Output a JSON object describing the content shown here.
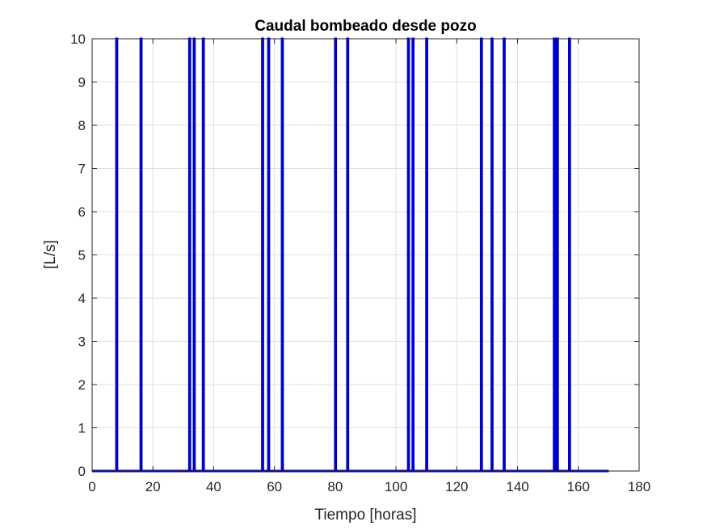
{
  "chart_data": {
    "type": "line",
    "title": "Caudal bombeado desde pozo",
    "xlabel": "Tiempo [horas]",
    "ylabel": "[L/s]",
    "xlim": [
      0,
      180
    ],
    "ylim": [
      0,
      10
    ],
    "xticks": [
      0,
      20,
      40,
      60,
      80,
      100,
      120,
      140,
      160,
      180
    ],
    "yticks": [
      0,
      1,
      2,
      3,
      4,
      5,
      6,
      7,
      8,
      9,
      10
    ],
    "grid": true,
    "series": [
      {
        "color": "#0000cc",
        "pulses": [
          {
            "start": 8,
            "end": 8.2,
            "value": 10
          },
          {
            "start": 16,
            "end": 16.2,
            "value": 10
          },
          {
            "start": 32,
            "end": 32.2,
            "value": 10
          },
          {
            "start": 33.5,
            "end": 33.7,
            "value": 10
          },
          {
            "start": 36.5,
            "end": 36.7,
            "value": 10
          },
          {
            "start": 56,
            "end": 56.2,
            "value": 10
          },
          {
            "start": 58,
            "end": 58.2,
            "value": 10
          },
          {
            "start": 62.5,
            "end": 62.7,
            "value": 10
          },
          {
            "start": 80,
            "end": 80.2,
            "value": 10
          },
          {
            "start": 84,
            "end": 84.2,
            "value": 10
          },
          {
            "start": 104,
            "end": 104.2,
            "value": 10
          },
          {
            "start": 105.5,
            "end": 105.7,
            "value": 10
          },
          {
            "start": 110,
            "end": 110.2,
            "value": 10
          },
          {
            "start": 128,
            "end": 128.2,
            "value": 10
          },
          {
            "start": 131.5,
            "end": 131.7,
            "value": 10
          },
          {
            "start": 135.5,
            "end": 135.7,
            "value": 10
          },
          {
            "start": 152,
            "end": 152.2,
            "value": 10
          },
          {
            "start": 153,
            "end": 153.2,
            "value": 10
          },
          {
            "start": 157,
            "end": 157.2,
            "value": 10
          }
        ]
      }
    ]
  }
}
